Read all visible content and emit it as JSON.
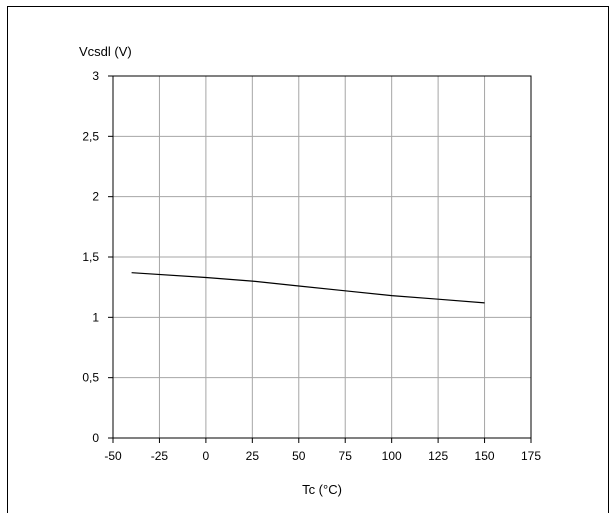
{
  "chart_data": {
    "type": "line",
    "title": "",
    "xlabel": "Tc (°C)",
    "ylabel": "Vcsdl (V)",
    "xlim": [
      -50,
      175
    ],
    "ylim": [
      0,
      3
    ],
    "x_ticks": [
      -50,
      -25,
      0,
      25,
      50,
      75,
      100,
      125,
      150,
      175
    ],
    "y_ticks": [
      0,
      0.5,
      1,
      1.5,
      2,
      2.5,
      3
    ],
    "x_tick_labels": [
      "-50",
      "-25",
      "0",
      "25",
      "50",
      "75",
      "100",
      "125",
      "150",
      "175"
    ],
    "y_tick_labels": [
      "0",
      "0,5",
      "1",
      "1,5",
      "2",
      "2,5",
      "3"
    ],
    "grid": true,
    "legend": false,
    "series": [
      {
        "color": "#000000",
        "x": [
          -40,
          0,
          25,
          50,
          75,
          100,
          125,
          150
        ],
        "y": [
          1.37,
          1.33,
          1.3,
          1.26,
          1.22,
          1.18,
          1.15,
          1.12
        ]
      }
    ]
  }
}
